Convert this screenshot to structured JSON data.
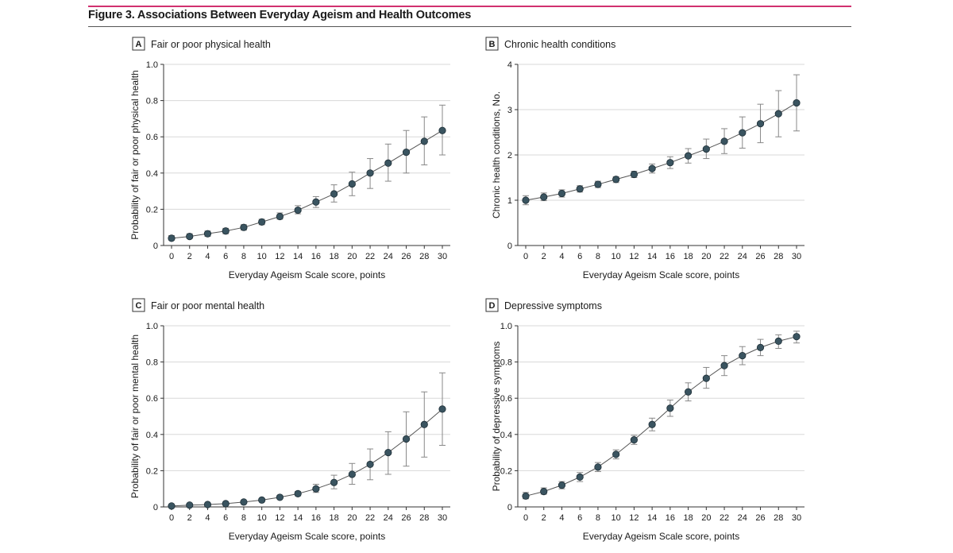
{
  "figure": {
    "title": "Figure 3. Associations Between Everyday Ageism and Health Outcomes"
  },
  "chart_data": [
    {
      "type": "line",
      "panel": "A",
      "title": "Fair or poor physical health",
      "xlabel": "Everyday Ageism Scale score, points",
      "ylabel": "Probability of fair or poor physical health",
      "x": [
        0,
        2,
        4,
        6,
        8,
        10,
        12,
        14,
        16,
        18,
        20,
        22,
        24,
        26,
        28,
        30
      ],
      "y": [
        0.04,
        0.05,
        0.065,
        0.08,
        0.1,
        0.13,
        0.16,
        0.195,
        0.24,
        0.285,
        0.34,
        0.4,
        0.455,
        0.515,
        0.575,
        0.635
      ],
      "ci_low": [
        0.03,
        0.04,
        0.05,
        0.065,
        0.085,
        0.115,
        0.145,
        0.175,
        0.21,
        0.24,
        0.275,
        0.315,
        0.355,
        0.4,
        0.445,
        0.5
      ],
      "ci_high": [
        0.055,
        0.065,
        0.08,
        0.095,
        0.115,
        0.145,
        0.18,
        0.22,
        0.27,
        0.335,
        0.405,
        0.48,
        0.56,
        0.635,
        0.71,
        0.775
      ],
      "xticks": [
        "0",
        "2",
        "4",
        "6",
        "8",
        "10",
        "12",
        "14",
        "16",
        "18",
        "20",
        "22",
        "24",
        "26",
        "28",
        "30"
      ],
      "yticks": [
        "0",
        "0.2",
        "0.4",
        "0.6",
        "0.8",
        "1.0"
      ],
      "ytick_values": [
        0,
        0.2,
        0.4,
        0.6,
        0.8,
        1.0
      ],
      "xlim": [
        0,
        30
      ],
      "ylim": [
        0,
        1.0
      ],
      "grid": true
    },
    {
      "type": "line",
      "panel": "B",
      "title": "Chronic health conditions",
      "xlabel": "Everyday Ageism Scale score, points",
      "ylabel": "Chronic health conditions, No.",
      "x": [
        0,
        2,
        4,
        6,
        8,
        10,
        12,
        14,
        16,
        18,
        20,
        22,
        24,
        26,
        28,
        30
      ],
      "y": [
        1.0,
        1.07,
        1.15,
        1.25,
        1.35,
        1.46,
        1.57,
        1.7,
        1.83,
        1.98,
        2.13,
        2.3,
        2.49,
        2.69,
        2.91,
        3.15
      ],
      "ci_low": [
        0.9,
        0.99,
        1.07,
        1.18,
        1.28,
        1.39,
        1.5,
        1.6,
        1.7,
        1.82,
        1.92,
        2.03,
        2.15,
        2.27,
        2.4,
        2.53
      ],
      "ci_high": [
        1.1,
        1.16,
        1.23,
        1.32,
        1.42,
        1.52,
        1.64,
        1.8,
        1.96,
        2.14,
        2.35,
        2.58,
        2.84,
        3.12,
        3.42,
        3.77
      ],
      "xticks": [
        "0",
        "2",
        "4",
        "6",
        "8",
        "10",
        "12",
        "14",
        "16",
        "18",
        "20",
        "22",
        "24",
        "26",
        "28",
        "30"
      ],
      "yticks": [
        "0",
        "1",
        "2",
        "3",
        "4"
      ],
      "ytick_values": [
        0,
        1,
        2,
        3,
        4
      ],
      "xlim": [
        0,
        30
      ],
      "ylim": [
        0,
        4
      ],
      "grid": true
    },
    {
      "type": "line",
      "panel": "C",
      "title": "Fair or poor mental health",
      "xlabel": "Everyday Ageism Scale score, points",
      "ylabel": "Probability of fair or poor mental health",
      "x": [
        0,
        2,
        4,
        6,
        8,
        10,
        12,
        14,
        16,
        18,
        20,
        22,
        24,
        26,
        28,
        30
      ],
      "y": [
        0.005,
        0.01,
        0.013,
        0.018,
        0.027,
        0.038,
        0.053,
        0.073,
        0.1,
        0.135,
        0.18,
        0.235,
        0.3,
        0.375,
        0.455,
        0.54
      ],
      "ci_low": [
        0.002,
        0.006,
        0.009,
        0.013,
        0.021,
        0.031,
        0.045,
        0.061,
        0.08,
        0.1,
        0.125,
        0.15,
        0.18,
        0.225,
        0.275,
        0.34
      ],
      "ci_high": [
        0.009,
        0.014,
        0.018,
        0.023,
        0.033,
        0.045,
        0.062,
        0.086,
        0.125,
        0.175,
        0.24,
        0.32,
        0.415,
        0.525,
        0.635,
        0.74
      ],
      "xticks": [
        "0",
        "2",
        "4",
        "6",
        "8",
        "10",
        "12",
        "14",
        "16",
        "18",
        "20",
        "22",
        "24",
        "26",
        "28",
        "30"
      ],
      "yticks": [
        "0",
        "0.2",
        "0.4",
        "0.6",
        "0.8",
        "1.0"
      ],
      "ytick_values": [
        0,
        0.2,
        0.4,
        0.6,
        0.8,
        1.0
      ],
      "xlim": [
        0,
        30
      ],
      "ylim": [
        0,
        1.0
      ],
      "grid": true
    },
    {
      "type": "line",
      "panel": "D",
      "title": "Depressive symptoms",
      "xlabel": "Everyday Ageism Scale score, points",
      "ylabel": "Probability of depressive symptoms",
      "x": [
        0,
        2,
        4,
        6,
        8,
        10,
        12,
        14,
        16,
        18,
        20,
        22,
        24,
        26,
        28,
        30
      ],
      "y": [
        0.06,
        0.085,
        0.12,
        0.165,
        0.22,
        0.29,
        0.37,
        0.455,
        0.545,
        0.635,
        0.71,
        0.78,
        0.835,
        0.88,
        0.915,
        0.94
      ],
      "ci_low": [
        0.045,
        0.07,
        0.1,
        0.14,
        0.195,
        0.265,
        0.345,
        0.42,
        0.5,
        0.585,
        0.655,
        0.725,
        0.785,
        0.835,
        0.875,
        0.905
      ],
      "ci_high": [
        0.08,
        0.105,
        0.14,
        0.19,
        0.245,
        0.315,
        0.395,
        0.49,
        0.59,
        0.685,
        0.77,
        0.835,
        0.885,
        0.925,
        0.95,
        0.97
      ],
      "xticks": [
        "0",
        "2",
        "4",
        "6",
        "8",
        "10",
        "12",
        "14",
        "16",
        "18",
        "20",
        "22",
        "24",
        "26",
        "28",
        "30"
      ],
      "yticks": [
        "0",
        "0.2",
        "0.4",
        "0.6",
        "0.8",
        "1.0"
      ],
      "ytick_values": [
        0,
        0.2,
        0.4,
        0.6,
        0.8,
        1.0
      ],
      "xlim": [
        0,
        30
      ],
      "ylim": [
        0,
        1.0
      ],
      "grid": true
    }
  ],
  "colors": {
    "marker": "#3a5460",
    "line": "#555555",
    "grid": "#d8d8d8",
    "axis": "#333333",
    "errorbar": "#888888"
  }
}
